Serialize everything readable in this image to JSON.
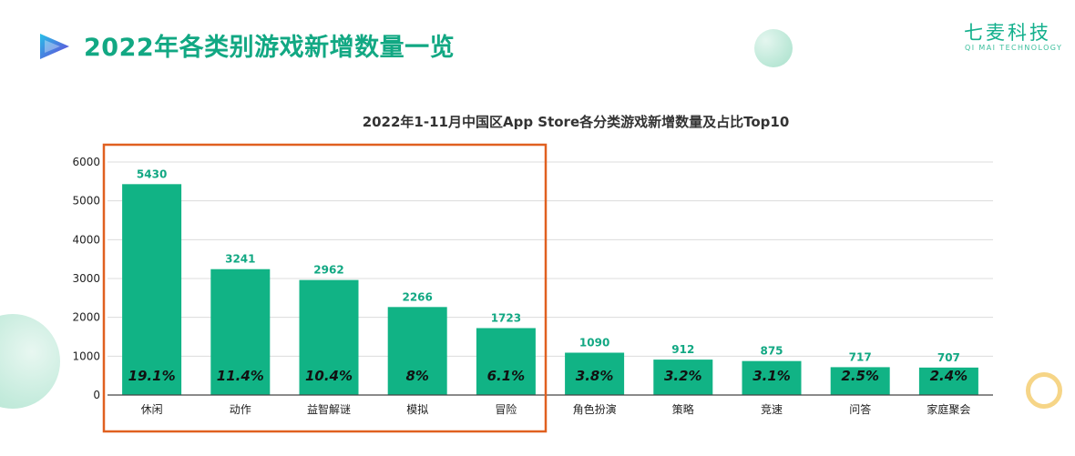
{
  "page": {
    "title": "2022年各类别游戏新增数量一览"
  },
  "logo": {
    "name_cn": "七麦科技",
    "name_en": "QI MAI TECHNOLOGY"
  },
  "icons": {
    "title_marker": "play-triangle-icon"
  },
  "colors": {
    "accent": "#12a883",
    "bar": "#11b385",
    "highlight_border": "#e06020"
  },
  "chart_data": {
    "type": "bar",
    "title": "2022年1-11月中国区App Store各分类游戏新增数量及占比Top10",
    "categories": [
      "休闲",
      "动作",
      "益智解谜",
      "模拟",
      "冒险",
      "角色扮演",
      "策略",
      "竞速",
      "问答",
      "家庭聚会"
    ],
    "values": [
      5430,
      3241,
      2962,
      2266,
      1723,
      1090,
      912,
      875,
      717,
      707
    ],
    "share_labels": [
      "19.1%",
      "11.4%",
      "10.4%",
      "8%",
      "6.1%",
      "3.8%",
      "3.2%",
      "3.1%",
      "2.5%",
      "2.4%"
    ],
    "yticks": [
      0,
      1000,
      2000,
      3000,
      4000,
      5000,
      6000
    ],
    "ylim": [
      0,
      6000
    ],
    "grid": true,
    "highlighted_categories": [
      "休闲",
      "动作",
      "益智解谜",
      "模拟",
      "冒险"
    ]
  }
}
